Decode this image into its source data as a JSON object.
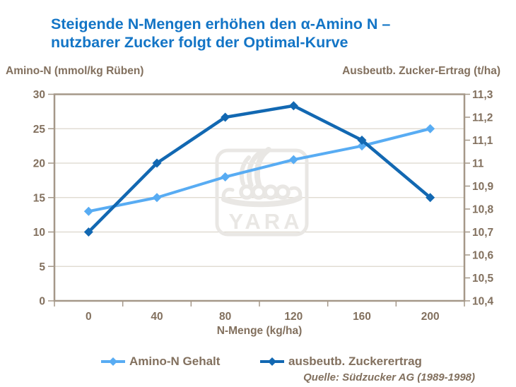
{
  "slide": {
    "title_lines": "Steigende N-Mengen erhöhen den α-Amino N –\nnutzbarer Zucker folgt der Optimal-Kurve",
    "source": "Quelle: Südzucker AG (1989-1998)"
  },
  "colors": {
    "title_blue": "#1375c6",
    "amino_blue": "#58acf3",
    "zucker_blue": "#1268b2",
    "axis_text": "#82705e",
    "gridline": "#dcd6cc",
    "plot_border": "#a59889",
    "watermark": "#e9e7e4"
  },
  "watermark": {
    "text": "YARA",
    "icon": "yara-viking-ship-logo"
  },
  "chart_data": {
    "type": "line",
    "title": "Steigende N-Mengen erhöhen den α-Amino N – nutzbarer Zucker folgt der Optimal-Kurve",
    "source": "Quelle: Südzucker AG (1989-1998)",
    "categories": [
      0,
      40,
      80,
      120,
      160,
      200
    ],
    "x_axis": {
      "label": "N-Menge (kg/ha)",
      "tick_labels": [
        "0",
        "40",
        "80",
        "120",
        "160",
        "200"
      ]
    },
    "y_left": {
      "label": "Amino-N (mmol/kg Rüben)",
      "min": 0,
      "max": 30,
      "tick_step": 5,
      "tick_labels": [
        "0",
        "5",
        "10",
        "15",
        "20",
        "25",
        "30"
      ]
    },
    "y_right": {
      "label": "Ausbeutb. Zucker-Ertrag (t/ha)",
      "min": 10.4,
      "max": 11.3,
      "tick_step": 0.1,
      "tick_labels": [
        "10,4",
        "10,5",
        "10,6",
        "10,7",
        "10,8",
        "10,9",
        "11",
        "11,1",
        "11,2",
        "11,3"
      ]
    },
    "series": [
      {
        "name": "Amino-N Gehalt",
        "axis": "left",
        "color": "#58acf3",
        "values": [
          13,
          15,
          18,
          20.5,
          22.5,
          25
        ]
      },
      {
        "name": "ausbeutb. Zuckerertrag",
        "axis": "right",
        "color": "#1268b2",
        "values": [
          10.7,
          11.0,
          11.2,
          11.25,
          11.1,
          10.85
        ]
      }
    ],
    "legend_position": "bottom",
    "grid": "horizontal"
  }
}
